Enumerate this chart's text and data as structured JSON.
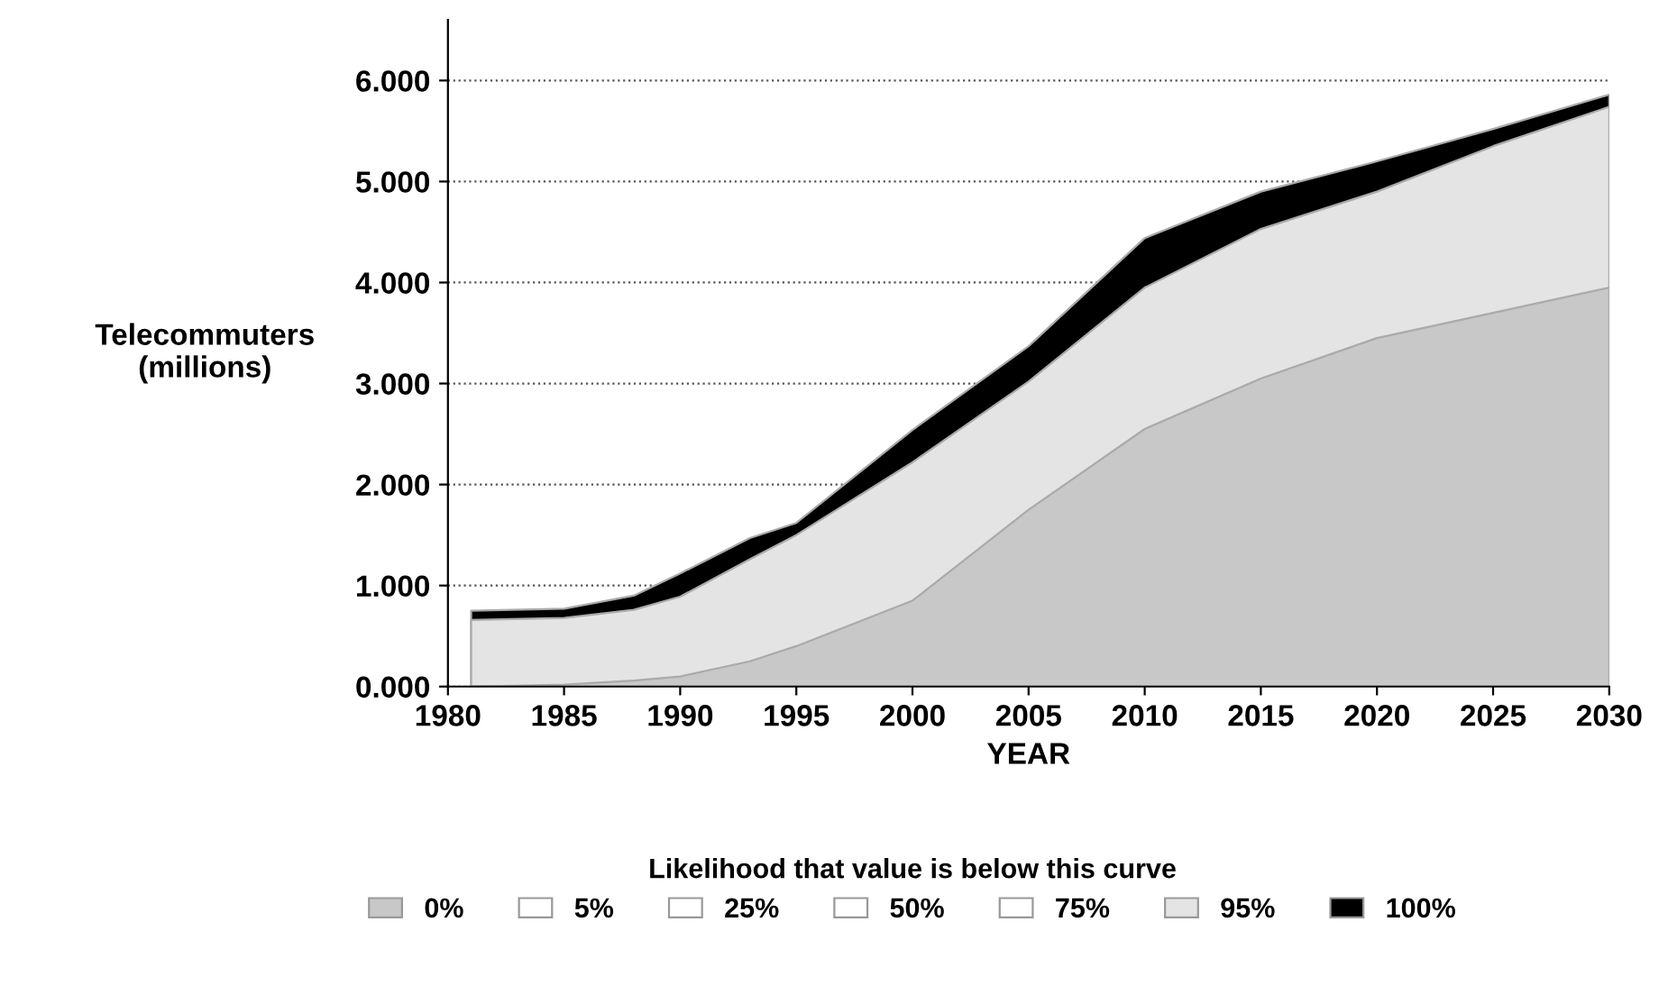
{
  "chart_data": {
    "type": "area",
    "xlabel": "YEAR",
    "ylabel": "Telecommuters\n(millions)",
    "legend_title": "Likelihood that value is below this curve",
    "x": [
      1981,
      1985,
      1988,
      1990,
      1993,
      1995,
      2000,
      2005,
      2010,
      2015,
      2020,
      2025,
      2030
    ],
    "series": [
      {
        "name": "0%",
        "color": "#c8c8c8",
        "values": [
          0.0,
          0.02,
          0.06,
          0.1,
          0.25,
          0.4,
          0.85,
          1.75,
          2.55,
          3.05,
          3.45,
          3.7,
          3.95
        ]
      },
      {
        "name": "5%",
        "color": "#ffffff",
        "values": [
          null,
          null,
          null,
          null,
          null,
          null,
          null,
          null,
          null,
          null,
          null,
          null,
          null
        ]
      },
      {
        "name": "25%",
        "color": "#ffffff",
        "values": [
          null,
          null,
          null,
          null,
          null,
          null,
          null,
          null,
          null,
          null,
          null,
          null,
          null
        ]
      },
      {
        "name": "50%",
        "color": "#ffffff",
        "values": [
          null,
          null,
          null,
          null,
          null,
          null,
          null,
          null,
          null,
          null,
          null,
          null,
          null
        ]
      },
      {
        "name": "75%",
        "color": "#ffffff",
        "values": [
          null,
          null,
          null,
          null,
          null,
          null,
          null,
          null,
          null,
          null,
          null,
          null,
          null
        ]
      },
      {
        "name": "95%",
        "color": "#e4e4e4",
        "values": [
          0.66,
          0.68,
          0.76,
          0.89,
          1.26,
          1.5,
          2.22,
          3.02,
          3.95,
          4.53,
          4.9,
          5.35,
          5.74
        ]
      },
      {
        "name": "100%",
        "color": "#000000",
        "values": [
          0.75,
          0.77,
          0.9,
          1.12,
          1.47,
          1.62,
          2.54,
          3.37,
          4.44,
          4.9,
          5.2,
          5.52,
          5.86
        ]
      }
    ],
    "xlim": [
      1980,
      2030
    ],
    "ylim": [
      0,
      6.6
    ],
    "xticks": [
      1980,
      1985,
      1990,
      1995,
      2000,
      2005,
      2010,
      2015,
      2020,
      2025,
      2030
    ],
    "yticks": [
      {
        "value": 0,
        "label": "0.000"
      },
      {
        "value": 1,
        "label": "1.000"
      },
      {
        "value": 2,
        "label": "2.000"
      },
      {
        "value": 3,
        "label": "3.000"
      },
      {
        "value": 4,
        "label": "4.000"
      },
      {
        "value": 5,
        "label": "5.000"
      },
      {
        "value": 6,
        "label": "6.000"
      }
    ],
    "grid": "y",
    "legend": "bottom"
  }
}
